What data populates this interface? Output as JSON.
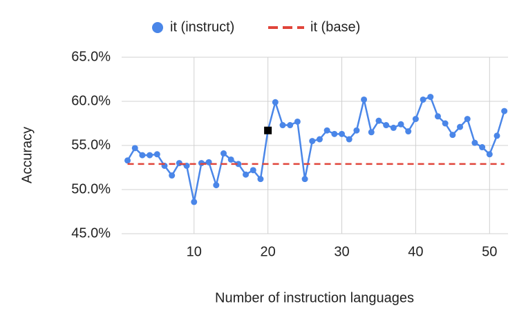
{
  "chart_data": {
    "type": "line",
    "x_label": "Number of instruction languages",
    "y_label": "Accuracy",
    "x": [
      1,
      2,
      3,
      4,
      5,
      6,
      7,
      8,
      9,
      10,
      11,
      12,
      13,
      14,
      15,
      16,
      17,
      18,
      19,
      20,
      21,
      22,
      23,
      24,
      25,
      26,
      27,
      28,
      29,
      30,
      31,
      32,
      33,
      34,
      35,
      36,
      37,
      38,
      39,
      40,
      41,
      42,
      43,
      44,
      45,
      46,
      47,
      48,
      49,
      50,
      51,
      52
    ],
    "series": [
      {
        "name": "it (instruct)",
        "color": "#4a86e8",
        "values": [
          53.3,
          54.7,
          53.9,
          53.9,
          54.0,
          52.7,
          51.6,
          53.0,
          52.7,
          48.6,
          53.0,
          53.1,
          50.5,
          54.1,
          53.4,
          52.9,
          51.7,
          52.2,
          51.2,
          56.7,
          59.9,
          57.3,
          57.3,
          57.7,
          51.2,
          55.5,
          55.7,
          56.7,
          56.3,
          56.3,
          55.7,
          56.7,
          60.2,
          56.5,
          57.8,
          57.3,
          57.0,
          57.4,
          56.6,
          58.0,
          60.2,
          60.5,
          58.3,
          57.5,
          56.2,
          57.1,
          58.0,
          55.3,
          54.8,
          54.0,
          56.1,
          58.9
        ]
      },
      {
        "name": "it (base)",
        "color": "#e0443a",
        "dashed": true,
        "value": 52.9
      }
    ],
    "highlight_x": 20,
    "highlight_color": "#000000",
    "xlim": [
      0.2,
      52.5
    ],
    "xticks": [
      10,
      20,
      30,
      40,
      50
    ],
    "ylim": [
      45,
      65
    ],
    "yticks": [
      {
        "value": 45,
        "label": "45.0%"
      },
      {
        "value": 50,
        "label": "50.0%"
      },
      {
        "value": 55,
        "label": "55.0%"
      },
      {
        "value": 60,
        "label": "60.0%"
      },
      {
        "value": 65,
        "label": "65.0%"
      }
    ],
    "grid": true
  }
}
